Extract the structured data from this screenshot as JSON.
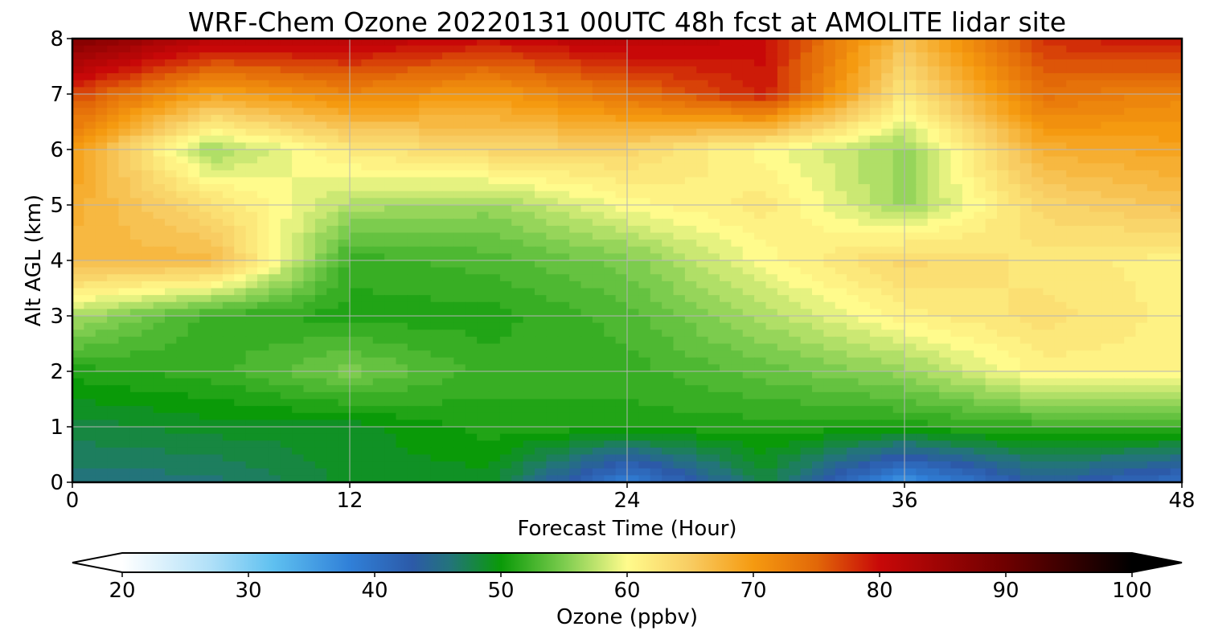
{
  "chart_data": {
    "type": "heatmap",
    "title": "WRF-Chem Ozone  20220131 00UTC 48h fcst at AMOLITE lidar site",
    "xlabel": "Forecast Time (Hour)",
    "ylabel": "Alt AGL (km)",
    "xlim": [
      0,
      48
    ],
    "ylim": [
      0,
      8
    ],
    "xticks": [
      "0",
      "12",
      "24",
      "36",
      "48"
    ],
    "yticks": [
      "0",
      "1",
      "2",
      "3",
      "4",
      "5",
      "6",
      "7",
      "8"
    ],
    "grid": true,
    "colorbar": {
      "label": "Ozone  (ppbv)",
      "min": 20,
      "max": 100,
      "ticks": [
        "20",
        "30",
        "40",
        "50",
        "60",
        "70",
        "80",
        "90",
        "100"
      ],
      "extend": "both",
      "stops": [
        [
          20,
          "#ffffff"
        ],
        [
          27,
          "#b0e0f8"
        ],
        [
          32,
          "#5ec0f0"
        ],
        [
          38,
          "#3080d8"
        ],
        [
          43,
          "#2c5aa8"
        ],
        [
          46,
          "#23747a"
        ],
        [
          50,
          "#0a9a08"
        ],
        [
          55,
          "#7ccc4e"
        ],
        [
          60,
          "#fffb8c"
        ],
        [
          65,
          "#f8cc62"
        ],
        [
          70,
          "#f59a10"
        ],
        [
          75,
          "#e26808"
        ],
        [
          80,
          "#c80808"
        ],
        [
          90,
          "#6e0000"
        ],
        [
          100,
          "#000000"
        ]
      ]
    },
    "x": [
      0,
      6,
      12,
      18,
      24,
      30,
      36,
      42,
      48
    ],
    "y": [
      0,
      1,
      2,
      3,
      4,
      5,
      6,
      7,
      8
    ],
    "z": [
      [
        46,
        46,
        49,
        49,
        38,
        48,
        36,
        44,
        40
      ],
      [
        48,
        49,
        49,
        51,
        51,
        51,
        51,
        52,
        52
      ],
      [
        51,
        52,
        55,
        52,
        52,
        54,
        56,
        61,
        61
      ],
      [
        57,
        52,
        51,
        51,
        53,
        57,
        61,
        63,
        61
      ],
      [
        67,
        67,
        52,
        53,
        55,
        60,
        64,
        62,
        61
      ],
      [
        68,
        63,
        57,
        56,
        60,
        62,
        56,
        64,
        66
      ],
      [
        70,
        56,
        62,
        64,
        64,
        60,
        56,
        68,
        69
      ],
      [
        77,
        69,
        72,
        70,
        74,
        79,
        62,
        74,
        72
      ],
      [
        88,
        82,
        82,
        80,
        82,
        80,
        66,
        78,
        80
      ]
    ]
  }
}
